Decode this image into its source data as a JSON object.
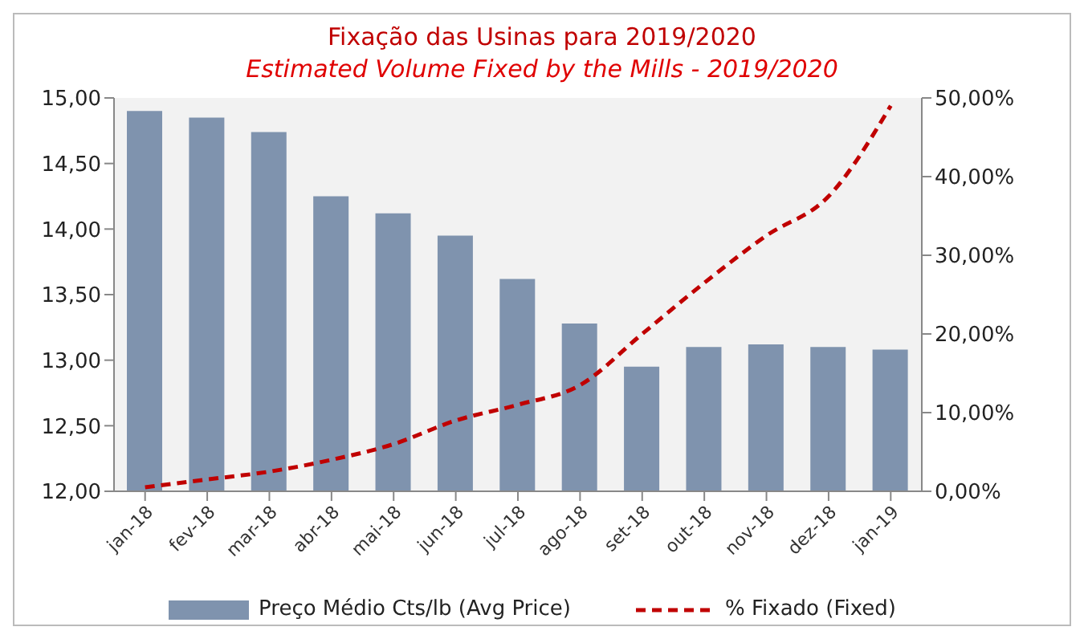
{
  "chart_data": {
    "type": "bar",
    "title": "Fixação das Usinas para 2019/2020",
    "subtitle": "Estimated Volume Fixed by the Mills - 2019/2020",
    "categories": [
      "jan-18",
      "fev-18",
      "mar-18",
      "abr-18",
      "mai-18",
      "jun-18",
      "jul-18",
      "ago-18",
      "set-18",
      "out-18",
      "nov-18",
      "dez-18",
      "jan-19"
    ],
    "series": [
      {
        "name": "Preço Médio Cts/lb (Avg Price)",
        "color": "#7f93ae",
        "values": [
          14.9,
          14.85,
          14.74,
          14.25,
          14.12,
          13.95,
          13.62,
          13.28,
          12.95,
          13.1,
          13.12,
          13.1,
          13.08
        ]
      },
      {
        "name": "% Fixado (Fixed)",
        "type": "line",
        "axis": "y2",
        "color": "#c00000",
        "line_style": "dashed",
        "values": [
          0.5,
          1.5,
          2.5,
          4,
          6,
          9,
          11,
          13.5,
          20,
          26.5,
          32.5,
          37.5,
          49
        ]
      }
    ],
    "ylim": [
      12,
      15
    ],
    "yticks": [
      {
        "value": 12,
        "label": "12,00"
      },
      {
        "value": 12.5,
        "label": "12,50"
      },
      {
        "value": 13,
        "label": "13,00"
      },
      {
        "value": 13.5,
        "label": "13,50"
      },
      {
        "value": 14,
        "label": "14,00"
      },
      {
        "value": 14.5,
        "label": "14,50"
      },
      {
        "value": 15,
        "label": "15,00"
      }
    ],
    "y2lim": [
      0,
      50
    ],
    "y2ticks": [
      {
        "value": 0,
        "label": "0,00%"
      },
      {
        "value": 10,
        "label": "10,00%"
      },
      {
        "value": 20,
        "label": "20,00%"
      },
      {
        "value": 30,
        "label": "30,00%"
      },
      {
        "value": 40,
        "label": "40,00%"
      },
      {
        "value": 50,
        "label": "50,00%"
      }
    ],
    "grid": false,
    "legend": "bottom",
    "marker": "none"
  }
}
